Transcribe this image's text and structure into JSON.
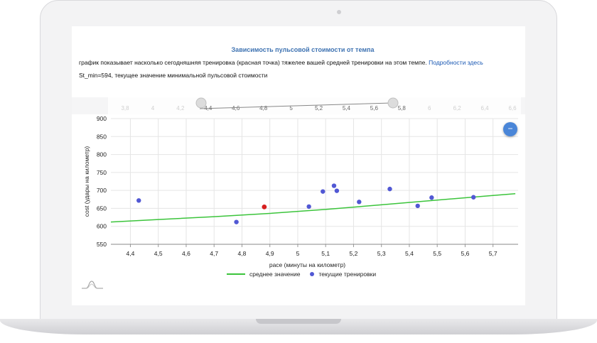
{
  "header": {
    "title": "Зависимость пульсовой стоимости от темпа",
    "description": "график показывает насколько сегодняшняя тренировка (красная точка) тяжелее вашей средней тренировки на этом темпе.",
    "link_text": "Подробности здесь",
    "stmin_text": "St_min=594, текущее значение минимальной пульсовой стоимости"
  },
  "zoom": {
    "icon": "minus-icon",
    "label": "−"
  },
  "navigator_ticks": [
    "3,8",
    "4",
    "4,2",
    "4,4",
    "4,6",
    "4,8",
    "5",
    "5,2",
    "5,4",
    "5,6",
    "5,8",
    "6",
    "6,2",
    "6,4",
    "6,6"
  ],
  "colors": {
    "title": "#3f73b2",
    "trend": "#3bc43b",
    "points": "#5158d4",
    "today": "#d61f1f",
    "link": "#1a58b3"
  },
  "chart_data": {
    "type": "scatter",
    "xlabel": "pace (минуты на километр)",
    "ylabel": "cost (удары на километр)",
    "xlim": [
      4.33,
      5.79
    ],
    "ylim": [
      550,
      900
    ],
    "xticks": [
      "4,4",
      "4,5",
      "4,6",
      "4,7",
      "4,8",
      "4,9",
      "5",
      "5,1",
      "5,2",
      "5,3",
      "5,4",
      "5,5",
      "5,6",
      "5,7"
    ],
    "yticks": [
      "550",
      "600",
      "650",
      "700",
      "750",
      "800",
      "850",
      "900"
    ],
    "grid": true,
    "legend_position": "bottom-center",
    "series": [
      {
        "name": "среднее значение",
        "kind": "line",
        "x": [
          4.33,
          4.5,
          4.7,
          4.9,
          5.1,
          5.3,
          5.5,
          5.7,
          5.78
        ],
        "y": [
          612,
          619,
          627,
          636,
          647,
          660,
          673,
          686,
          691
        ]
      },
      {
        "name": "текущие тренировки",
        "kind": "scatter",
        "x": [
          4.43,
          4.78,
          5.04,
          5.09,
          5.13,
          5.14,
          5.22,
          5.33,
          5.43,
          5.48,
          5.63
        ],
        "y": [
          672,
          612,
          655,
          697,
          713,
          699,
          668,
          704,
          657,
          680,
          681
        ]
      },
      {
        "name": "today",
        "kind": "highlight",
        "x": [
          4.88
        ],
        "y": [
          654
        ]
      }
    ]
  }
}
